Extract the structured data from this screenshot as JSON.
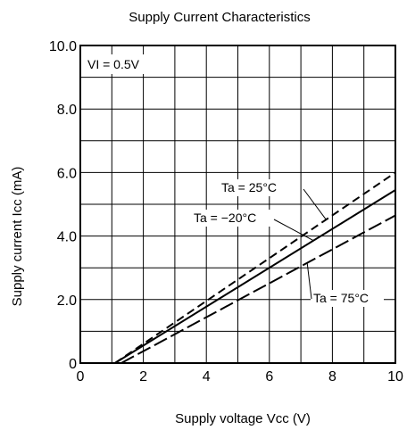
{
  "chart_data": {
    "type": "line",
    "title": "Supply Current Characteristics",
    "xlabel": "Supply voltage  Vcc (V)",
    "ylabel": "Supply current  Icc (mA)",
    "xlim": [
      0,
      10
    ],
    "ylim": [
      0,
      10
    ],
    "x_ticks": [
      "0",
      "2",
      "4",
      "6",
      "8",
      "10"
    ],
    "y_ticks": [
      "0",
      "2.0",
      "4.0",
      "6.0",
      "8.0",
      "10.0"
    ],
    "grid": true,
    "condition": "VI = 0.5V",
    "series": [
      {
        "name": "Ta = 25°C",
        "style": "dashed",
        "x": [
          1.1,
          10
        ],
        "y": [
          0,
          6.0
        ]
      },
      {
        "name": "Ta = −20°C",
        "style": "solid",
        "x": [
          1.1,
          10
        ],
        "y": [
          0,
          5.45
        ]
      },
      {
        "name": "Ta = 75°C",
        "style": "longdash",
        "x": [
          1.3,
          10
        ],
        "y": [
          0,
          4.65
        ]
      }
    ]
  }
}
